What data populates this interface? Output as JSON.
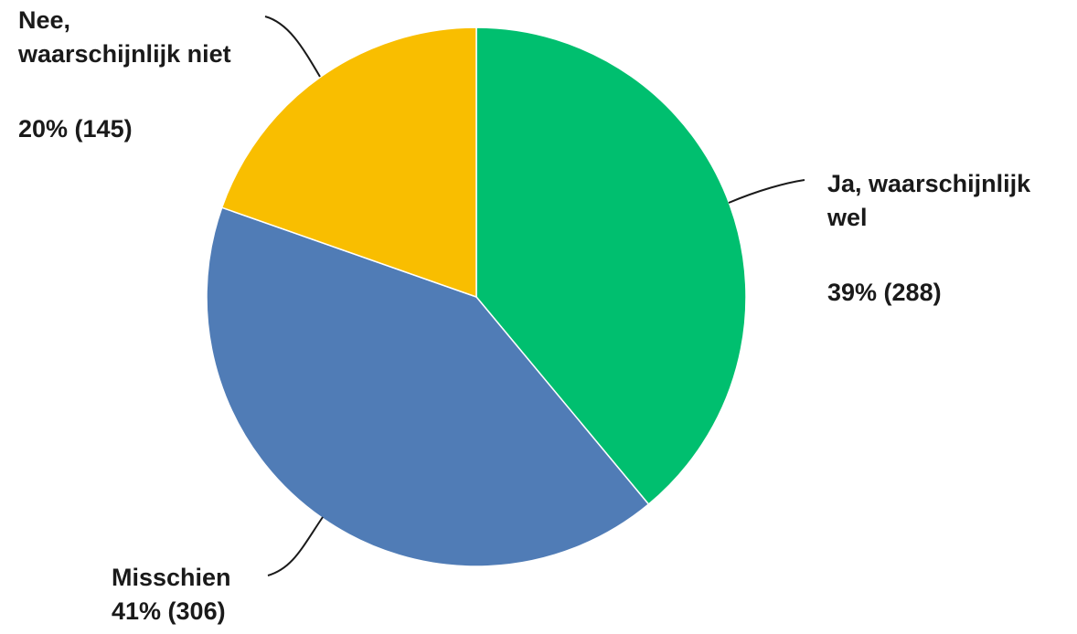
{
  "chart_data": {
    "type": "pie",
    "title": "",
    "start": "12 o'clock",
    "direction": "clockwise",
    "slices": [
      {
        "label_lines": [
          "Ja, waarschijnlijk",
          "wel"
        ],
        "value_text": "39% (288)",
        "percent": 39,
        "count": 288,
        "color": "#00bf6f"
      },
      {
        "label_lines": [
          "Misschien"
        ],
        "value_text": "41% (306)",
        "percent": 41,
        "count": 306,
        "color": "#507cb6"
      },
      {
        "label_lines": [
          "Nee,",
          "waarschijnlijk niet"
        ],
        "value_text": "20% (145)",
        "percent": 20,
        "count": 145,
        "color": "#f9be00"
      }
    ]
  }
}
